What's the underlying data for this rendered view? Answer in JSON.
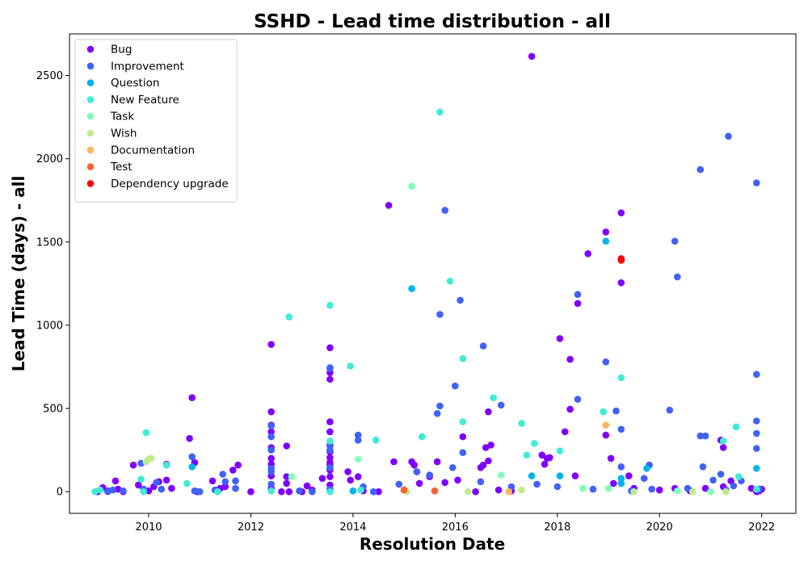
{
  "chart_data": {
    "type": "scatter",
    "title": "SSHD - Lead time distribution - all",
    "xlabel": "Resolution Date",
    "ylabel": "Lead Time (days) - all",
    "x_ticks": [
      "2010",
      "2012",
      "2014",
      "2016",
      "2018",
      "2020",
      "2022"
    ],
    "y_ticks": [
      "0",
      "500",
      "1000",
      "1500",
      "2000",
      "2500"
    ],
    "xlim": [
      2008.45,
      2022.67
    ],
    "ylim": [
      -130,
      2750
    ],
    "grid": false,
    "legend_position": "top-left",
    "series": [
      {
        "name": "Bug",
        "color": "#8000ff",
        "points": [
          [
            2009.0,
            0
          ],
          [
            2009.1,
            25
          ],
          [
            2009.2,
            5
          ],
          [
            2009.35,
            65
          ],
          [
            2009.4,
            15
          ],
          [
            2009.5,
            0
          ],
          [
            2009.7,
            160
          ],
          [
            2009.8,
            40
          ],
          [
            2009.9,
            10
          ],
          [
            2010.0,
            5
          ],
          [
            2010.1,
            30
          ],
          [
            2010.2,
            60
          ],
          [
            2010.35,
            70
          ],
          [
            2010.35,
            165
          ],
          [
            2010.45,
            20
          ],
          [
            2010.8,
            320
          ],
          [
            2010.85,
            565
          ],
          [
            2010.9,
            175
          ],
          [
            2010.95,
            0
          ],
          [
            2011.25,
            65
          ],
          [
            2011.4,
            20
          ],
          [
            2011.5,
            30
          ],
          [
            2011.65,
            130
          ],
          [
            2011.75,
            160
          ],
          [
            2012.0,
            0
          ],
          [
            2012.4,
            885
          ],
          [
            2012.4,
            480
          ],
          [
            2012.4,
            400
          ],
          [
            2012.4,
            360
          ],
          [
            2012.4,
            265
          ],
          [
            2012.4,
            200
          ],
          [
            2012.4,
            165
          ],
          [
            2012.4,
            95
          ],
          [
            2012.4,
            20
          ],
          [
            2012.6,
            0
          ],
          [
            2012.7,
            275
          ],
          [
            2012.7,
            90
          ],
          [
            2012.7,
            50
          ],
          [
            2012.75,
            0
          ],
          [
            2013.0,
            0
          ],
          [
            2013.1,
            35
          ],
          [
            2013.2,
            10
          ],
          [
            2013.4,
            80
          ],
          [
            2013.55,
            865
          ],
          [
            2013.55,
            715
          ],
          [
            2013.55,
            675
          ],
          [
            2013.55,
            420
          ],
          [
            2013.55,
            360
          ],
          [
            2013.55,
            280
          ],
          [
            2013.55,
            240
          ],
          [
            2013.55,
            205
          ],
          [
            2013.55,
            175
          ],
          [
            2013.55,
            160
          ],
          [
            2013.55,
            130
          ],
          [
            2013.55,
            90
          ],
          [
            2013.55,
            40
          ],
          [
            2013.9,
            120
          ],
          [
            2013.95,
            70
          ],
          [
            2014.1,
            90
          ],
          [
            2014.2,
            5
          ],
          [
            2014.5,
            0
          ],
          [
            2014.7,
            1720
          ],
          [
            2014.8,
            180
          ],
          [
            2015.0,
            10
          ],
          [
            2015.15,
            180
          ],
          [
            2015.2,
            160
          ],
          [
            2015.25,
            120
          ],
          [
            2015.3,
            50
          ],
          [
            2015.5,
            90
          ],
          [
            2015.65,
            180
          ],
          [
            2015.8,
            55
          ],
          [
            2016.05,
            70
          ],
          [
            2016.15,
            330
          ],
          [
            2016.4,
            0
          ],
          [
            2016.5,
            145
          ],
          [
            2016.55,
            160
          ],
          [
            2016.6,
            265
          ],
          [
            2016.65,
            185
          ],
          [
            2016.65,
            480
          ],
          [
            2016.7,
            280
          ],
          [
            2016.85,
            10
          ],
          [
            2017.1,
            5
          ],
          [
            2017.5,
            2615
          ],
          [
            2017.7,
            220
          ],
          [
            2017.75,
            165
          ],
          [
            2017.8,
            200
          ],
          [
            2017.85,
            205
          ],
          [
            2018.05,
            920
          ],
          [
            2018.15,
            360
          ],
          [
            2018.25,
            795
          ],
          [
            2018.25,
            495
          ],
          [
            2018.35,
            95
          ],
          [
            2018.4,
            1130
          ],
          [
            2018.6,
            1430
          ],
          [
            2018.95,
            1560
          ],
          [
            2018.95,
            340
          ],
          [
            2019.05,
            200
          ],
          [
            2019.1,
            50
          ],
          [
            2019.25,
            1675
          ],
          [
            2019.25,
            1255
          ],
          [
            2019.4,
            95
          ],
          [
            2019.5,
            20
          ],
          [
            2020.0,
            10
          ],
          [
            2020.3,
            20
          ],
          [
            2020.6,
            5
          ],
          [
            2020.9,
            20
          ],
          [
            2021.2,
            310
          ],
          [
            2021.25,
            265
          ],
          [
            2021.25,
            30
          ],
          [
            2021.4,
            65
          ],
          [
            2021.8,
            20
          ],
          [
            2021.9,
            0
          ],
          [
            2021.95,
            5
          ],
          [
            2022.0,
            15
          ]
        ]
      },
      {
        "name": "Improvement",
        "color": "#4062fa",
        "points": [
          [
            2009.2,
            0
          ],
          [
            2009.3,
            10
          ],
          [
            2009.5,
            5
          ],
          [
            2009.85,
            170
          ],
          [
            2009.9,
            15
          ],
          [
            2010.15,
            55
          ],
          [
            2010.25,
            15
          ],
          [
            2010.85,
            210
          ],
          [
            2010.9,
            5
          ],
          [
            2011.0,
            0
          ],
          [
            2011.3,
            10
          ],
          [
            2011.45,
            105
          ],
          [
            2011.5,
            60
          ],
          [
            2011.7,
            65
          ],
          [
            2011.7,
            20
          ],
          [
            2012.4,
            395
          ],
          [
            2012.4,
            330
          ],
          [
            2012.4,
            250
          ],
          [
            2012.4,
            140
          ],
          [
            2012.4,
            120
          ],
          [
            2012.4,
            45
          ],
          [
            2012.95,
            5
          ],
          [
            2013.2,
            0
          ],
          [
            2013.55,
            745
          ],
          [
            2013.55,
            740
          ],
          [
            2013.55,
            275
          ],
          [
            2013.55,
            250
          ],
          [
            2013.55,
            145
          ],
          [
            2013.55,
            15
          ],
          [
            2014.1,
            340
          ],
          [
            2014.1,
            310
          ],
          [
            2014.2,
            30
          ],
          [
            2014.4,
            0
          ],
          [
            2014.9,
            45
          ],
          [
            2015.25,
            120
          ],
          [
            2015.5,
            100
          ],
          [
            2015.6,
            5
          ],
          [
            2015.65,
            470
          ],
          [
            2015.7,
            1065
          ],
          [
            2015.7,
            515
          ],
          [
            2015.8,
            1690
          ],
          [
            2015.95,
            145
          ],
          [
            2016.0,
            635
          ],
          [
            2016.1,
            1150
          ],
          [
            2016.15,
            235
          ],
          [
            2016.5,
            60
          ],
          [
            2016.55,
            875
          ],
          [
            2016.9,
            520
          ],
          [
            2017.1,
            30
          ],
          [
            2017.6,
            45
          ],
          [
            2018.0,
            30
          ],
          [
            2018.4,
            1185
          ],
          [
            2018.4,
            555
          ],
          [
            2018.7,
            15
          ],
          [
            2018.95,
            780
          ],
          [
            2019.15,
            485
          ],
          [
            2019.25,
            150
          ],
          [
            2019.25,
            375
          ],
          [
            2019.45,
            5
          ],
          [
            2019.7,
            80
          ],
          [
            2019.8,
            160
          ],
          [
            2019.85,
            15
          ],
          [
            2020.2,
            490
          ],
          [
            2020.3,
            1505
          ],
          [
            2020.35,
            1290
          ],
          [
            2020.55,
            20
          ],
          [
            2020.8,
            1935
          ],
          [
            2020.8,
            335
          ],
          [
            2020.85,
            150
          ],
          [
            2020.9,
            335
          ],
          [
            2021.05,
            70
          ],
          [
            2021.2,
            105
          ],
          [
            2021.3,
            10
          ],
          [
            2021.35,
            2135
          ],
          [
            2021.45,
            35
          ],
          [
            2021.6,
            65
          ],
          [
            2021.9,
            1855
          ],
          [
            2021.9,
            705
          ],
          [
            2021.9,
            425
          ],
          [
            2021.9,
            350
          ],
          [
            2021.9,
            260
          ],
          [
            2021.95,
            15
          ]
        ]
      },
      {
        "name": "Question",
        "color": "#00b5eb",
        "points": [
          [
            2010.85,
            150
          ],
          [
            2014.0,
            5
          ],
          [
            2015.15,
            1220
          ],
          [
            2017.5,
            95
          ],
          [
            2018.05,
            95
          ],
          [
            2018.95,
            1505
          ],
          [
            2019.25,
            80
          ],
          [
            2019.25,
            50
          ],
          [
            2019.75,
            140
          ],
          [
            2021.9,
            140
          ]
        ]
      },
      {
        "name": "New Feature",
        "color": "#40ecd4",
        "points": [
          [
            2008.95,
            0
          ],
          [
            2009.05,
            10
          ],
          [
            2009.85,
            75
          ],
          [
            2009.9,
            0
          ],
          [
            2009.95,
            355
          ],
          [
            2010.35,
            160
          ],
          [
            2010.75,
            50
          ],
          [
            2011.35,
            0
          ],
          [
            2012.4,
            5
          ],
          [
            2012.75,
            1050
          ],
          [
            2013.55,
            1120
          ],
          [
            2013.55,
            305
          ],
          [
            2013.55,
            0
          ],
          [
            2013.95,
            755
          ],
          [
            2014.15,
            10
          ],
          [
            2014.45,
            310
          ],
          [
            2015.35,
            330
          ],
          [
            2015.7,
            2280
          ],
          [
            2015.9,
            1265
          ],
          [
            2016.15,
            800
          ],
          [
            2016.15,
            420
          ],
          [
            2016.75,
            565
          ],
          [
            2017.3,
            410
          ],
          [
            2017.4,
            220
          ],
          [
            2017.55,
            290
          ],
          [
            2018.05,
            245
          ],
          [
            2018.9,
            480
          ],
          [
            2019.25,
            685
          ],
          [
            2021.25,
            305
          ],
          [
            2021.5,
            390
          ],
          [
            2021.55,
            90
          ],
          [
            2021.9,
            15
          ]
        ]
      },
      {
        "name": "Task",
        "color": "#80ffb4",
        "points": [
          [
            2012.8,
            90
          ],
          [
            2014.1,
            195
          ],
          [
            2015.15,
            1835
          ],
          [
            2016.9,
            100
          ],
          [
            2018.5,
            20
          ],
          [
            2019.0,
            20
          ],
          [
            2020.35,
            5
          ],
          [
            2021.0,
            0
          ]
        ]
      },
      {
        "name": "Wish",
        "color": "#c0eb8d",
        "points": [
          [
            2009.95,
            180
          ],
          [
            2010.0,
            195
          ],
          [
            2010.05,
            200
          ],
          [
            2015.05,
            0
          ],
          [
            2016.25,
            0
          ],
          [
            2017.3,
            10
          ],
          [
            2019.5,
            0
          ],
          [
            2020.65,
            0
          ],
          [
            2021.3,
            0
          ]
        ]
      },
      {
        "name": "Documentation",
        "color": "#ffb360",
        "points": [
          [
            2017.05,
            0
          ],
          [
            2018.95,
            400
          ]
        ]
      },
      {
        "name": "Test",
        "color": "#ff6230",
        "points": [
          [
            2015.0,
            10
          ],
          [
            2015.6,
            5
          ]
        ]
      },
      {
        "name": "Dependency upgrade",
        "color": "#ff0000",
        "points": [
          [
            2019.25,
            1400
          ],
          [
            2019.25,
            1390
          ]
        ]
      }
    ]
  }
}
